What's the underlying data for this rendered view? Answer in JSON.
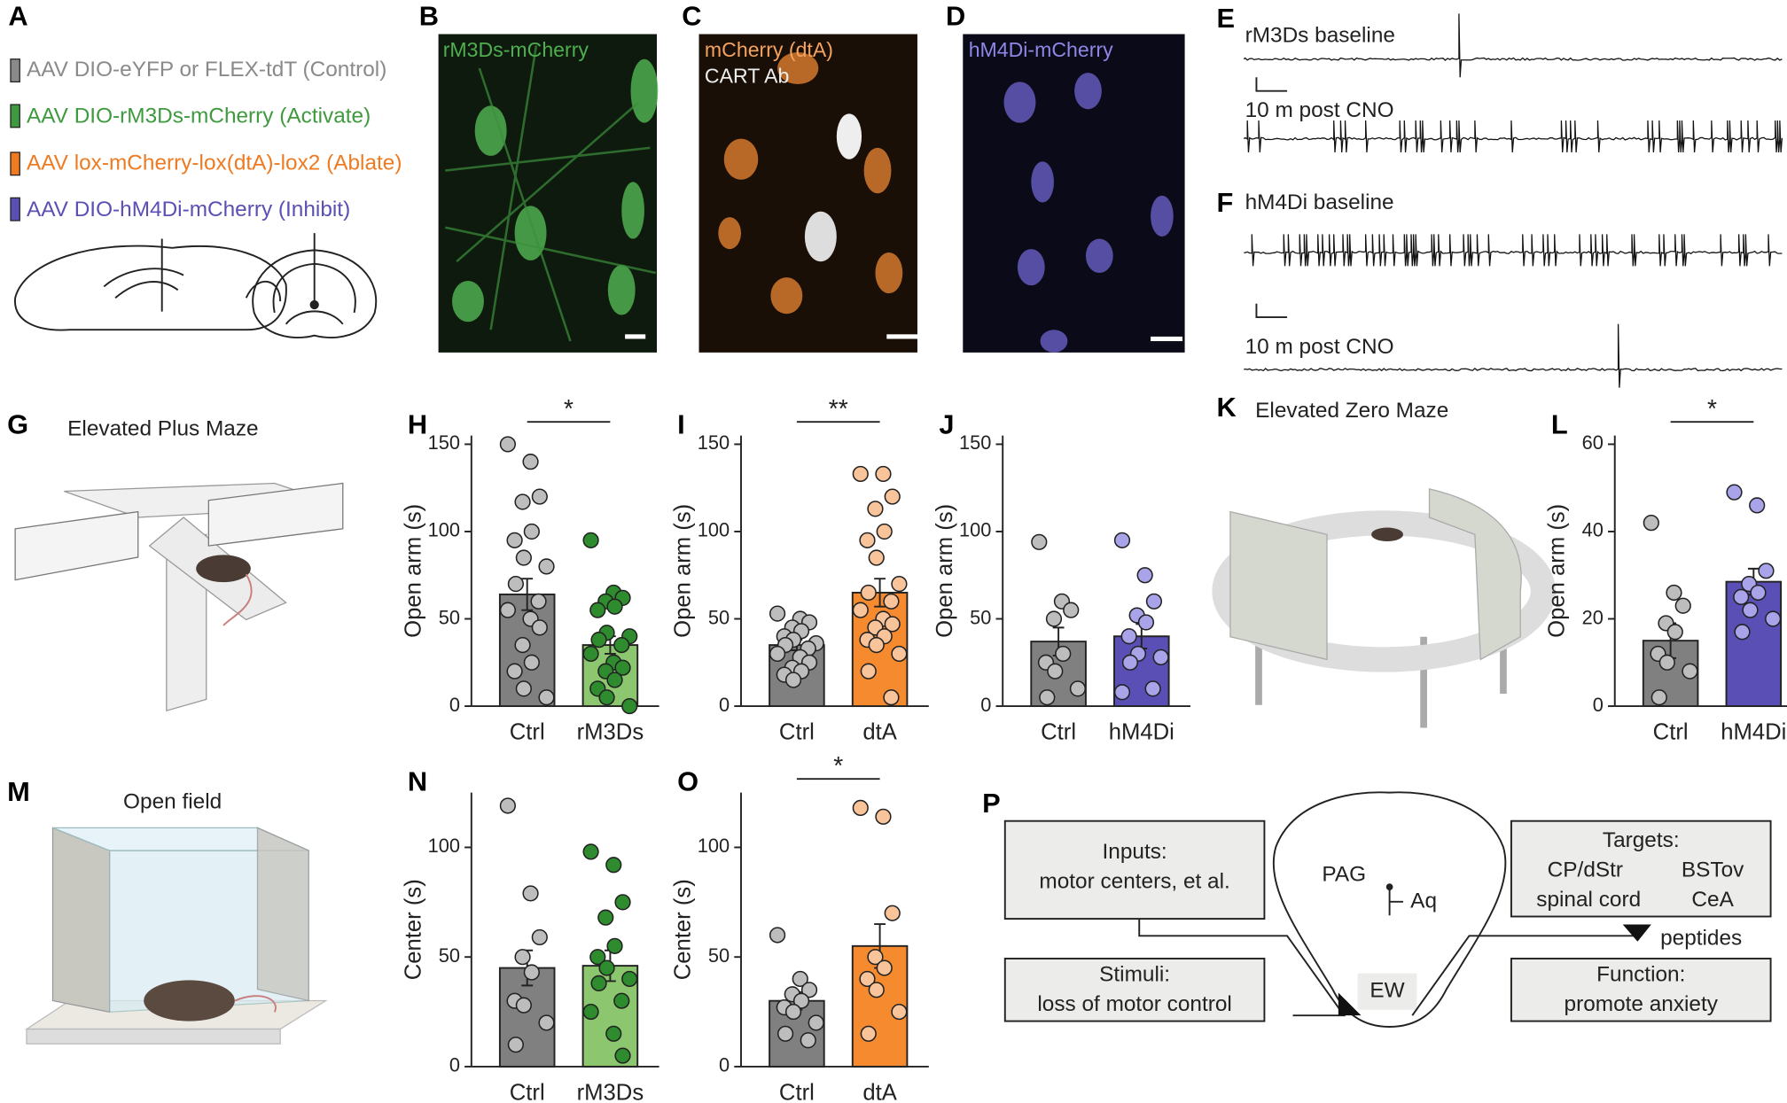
{
  "panel_a": {
    "letter": "A",
    "constructs": [
      {
        "label": "AAV DIO-eYFP or FLEX-tdT (Control)",
        "color": "#8a8a8a"
      },
      {
        "label": "AAV DIO-rM3Ds-mCherry (Activate)",
        "color": "#3f9a3f"
      },
      {
        "label": "AAV lox-mCherry-lox(dtA)-lox2 (Ablate)",
        "color": "#ee7a22"
      },
      {
        "label": "AAV DIO-hM4Di-mCherry (Inhibit)",
        "color": "#5a4fb5"
      }
    ]
  },
  "panel_images": [
    {
      "letter": "B",
      "labels": [
        "rM3Ds-mCherry"
      ]
    },
    {
      "letter": "C",
      "labels": [
        "mCherry (dtA)",
        "CART Ab"
      ]
    },
    {
      "letter": "D",
      "labels": [
        "hM4Di-mCherry"
      ]
    }
  ],
  "panel_traces": [
    {
      "letter": "E",
      "labels": [
        "rM3Ds baseline",
        "10 m post CNO"
      ]
    },
    {
      "letter": "F",
      "labels": [
        "hM4Di baseline",
        "10 m post CNO"
      ]
    }
  ],
  "schematics": [
    {
      "letter": "G",
      "title": "Elevated Plus Maze"
    },
    {
      "letter": "K",
      "title": "Elevated Zero Maze"
    },
    {
      "letter": "M",
      "title": "Open field"
    }
  ],
  "chart_data": [
    {
      "type": "bar",
      "letter": "H",
      "ylabel": "Open arm (s)",
      "categories": [
        "Ctrl",
        "rM3Ds"
      ],
      "values": [
        64,
        35
      ],
      "errors": [
        9,
        5
      ],
      "colors": [
        "#808080",
        "#8cc66f"
      ],
      "point_colors": [
        "#bdbdbd",
        "#2e8b2e"
      ],
      "points": [
        [
          150,
          140,
          120,
          117,
          100,
          95,
          85,
          80,
          70,
          60,
          55,
          50,
          45,
          35,
          25,
          20,
          10,
          5
        ],
        [
          95,
          65,
          62,
          60,
          57,
          55,
          42,
          40,
          38,
          35,
          30,
          25,
          22,
          20,
          15,
          10,
          5,
          0
        ]
      ],
      "significance": "*",
      "ylim": [
        0,
        155
      ],
      "yticks": [
        0,
        50,
        100,
        150
      ]
    },
    {
      "type": "bar",
      "letter": "I",
      "ylabel": "Open arm (s)",
      "categories": [
        "Ctrl",
        "dtA"
      ],
      "values": [
        35,
        65
      ],
      "errors": [
        3,
        8
      ],
      "colors": [
        "#808080",
        "#f58a2e"
      ],
      "point_colors": [
        "#bdbdbd",
        "#f9c49a"
      ],
      "points": [
        [
          53,
          50,
          48,
          45,
          43,
          40,
          38,
          36,
          35,
          33,
          30,
          28,
          25,
          22,
          20,
          18,
          15
        ],
        [
          133,
          133,
          120,
          113,
          100,
          95,
          85,
          70,
          65,
          60,
          55,
          50,
          47,
          45,
          40,
          38,
          35,
          30,
          20,
          5
        ]
      ],
      "significance": "**",
      "ylim": [
        0,
        155
      ],
      "yticks": [
        0,
        50,
        100,
        150
      ]
    },
    {
      "type": "bar",
      "letter": "J",
      "ylabel": "Open arm (s)",
      "categories": [
        "Ctrl",
        "hM4Di"
      ],
      "values": [
        37,
        40
      ],
      "errors": [
        8,
        7
      ],
      "colors": [
        "#808080",
        "#5a4fb5"
      ],
      "point_colors": [
        "#bdbdbd",
        "#a9a3ea"
      ],
      "points": [
        [
          94,
          60,
          55,
          50,
          30,
          25,
          20,
          10,
          5
        ],
        [
          95,
          75,
          60,
          52,
          48,
          40,
          30,
          28,
          25,
          10,
          8
        ]
      ],
      "ylim": [
        0,
        155
      ],
      "yticks": [
        0,
        50,
        100,
        150
      ]
    },
    {
      "type": "bar",
      "letter": "L",
      "ylabel": "Open arm (s)",
      "categories": [
        "Ctrl",
        "hM4Di"
      ],
      "values": [
        15,
        28.5
      ],
      "errors": [
        4,
        3
      ],
      "colors": [
        "#808080",
        "#5a4fb5"
      ],
      "point_colors": [
        "#bdbdbd",
        "#a9a3ea"
      ],
      "points": [
        [
          42,
          26,
          23,
          19,
          17,
          12,
          10,
          8,
          2
        ],
        [
          49,
          46,
          31,
          28,
          26,
          25,
          22,
          20,
          17
        ]
      ],
      "significance": "*",
      "ylim": [
        0,
        62
      ],
      "yticks": [
        0,
        20,
        40,
        60
      ]
    },
    {
      "type": "bar",
      "letter": "N",
      "ylabel": "Center (s)",
      "categories": [
        "Ctrl",
        "rM3Ds"
      ],
      "values": [
        45,
        46
      ],
      "errors": [
        8,
        7
      ],
      "colors": [
        "#808080",
        "#8cc66f"
      ],
      "point_colors": [
        "#bdbdbd",
        "#2e8b2e"
      ],
      "points": [
        [
          119,
          79,
          59,
          50,
          43,
          30,
          28,
          20,
          10
        ],
        [
          98,
          92,
          75,
          68,
          55,
          50,
          45,
          40,
          38,
          30,
          25,
          15,
          5
        ]
      ],
      "ylim": [
        0,
        125
      ],
      "yticks": [
        0,
        50,
        100
      ]
    },
    {
      "type": "bar",
      "letter": "O",
      "ylabel": "Center (s)",
      "categories": [
        "Ctrl",
        "dtA"
      ],
      "values": [
        30,
        55
      ],
      "errors": [
        4,
        10
      ],
      "colors": [
        "#808080",
        "#f58a2e"
      ],
      "point_colors": [
        "#bdbdbd",
        "#f9c49a"
      ],
      "points": [
        [
          60,
          40,
          35,
          33,
          30,
          27,
          25,
          20,
          15,
          12
        ],
        [
          118,
          114,
          70,
          50,
          45,
          40,
          35,
          25,
          15
        ]
      ],
      "significance": "*",
      "ylim": [
        0,
        125
      ],
      "yticks": [
        0,
        50,
        100
      ]
    }
  ],
  "panel_p": {
    "letter": "P",
    "inputs": [
      "Inputs:",
      "motor centers, et al."
    ],
    "stimuli": [
      "Stimuli:",
      "loss of motor control"
    ],
    "targets": [
      "Targets:",
      "CP/dStr",
      "BSTov",
      "spinal cord",
      "CeA"
    ],
    "function": [
      "Function:",
      "promote anxiety"
    ],
    "region_labels": [
      "PAG",
      "Aq",
      "EW"
    ],
    "output_label": "peptides"
  }
}
